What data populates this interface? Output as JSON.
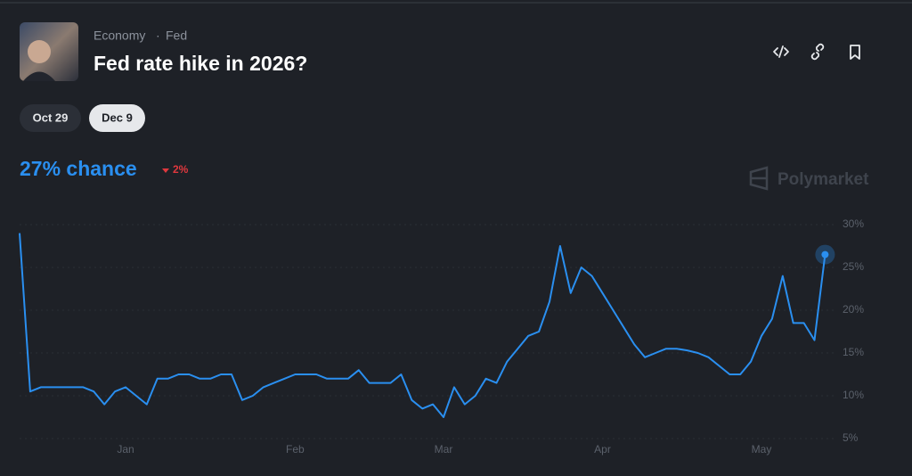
{
  "header": {
    "categories": [
      "Economy",
      "Fed"
    ],
    "title": "Fed rate hike in 2026?"
  },
  "tabs": [
    "Oct 29",
    "Dec 9"
  ],
  "chance": {
    "text": "27% chance",
    "change": "2%"
  },
  "watermark": "Polymarket",
  "chart_data": {
    "type": "line",
    "color": "#2a8ff0",
    "grid": true,
    "categories": [
      null,
      null,
      null,
      null,
      null,
      null,
      null,
      null,
      null,
      null,
      "Jan",
      null,
      null,
      null,
      null,
      null,
      null,
      null,
      null,
      null,
      null,
      null,
      null,
      null,
      null,
      null,
      "Feb",
      null,
      null,
      null,
      null,
      null,
      null,
      null,
      null,
      null,
      null,
      null,
      null,
      null,
      "Mar",
      null,
      null,
      null,
      null,
      null,
      null,
      null,
      null,
      null,
      null,
      null,
      null,
      null,
      null,
      "Apr",
      null,
      null,
      null,
      null,
      null,
      null,
      null,
      null,
      null,
      null,
      null,
      null,
      null,
      null,
      "May",
      null,
      null,
      null,
      null,
      null,
      null
    ],
    "values": [
      29,
      10.5,
      11,
      11,
      11,
      11,
      11,
      10.5,
      9,
      10.5,
      11,
      10,
      9,
      12,
      12,
      12.5,
      12.5,
      12,
      12,
      12.5,
      12.5,
      9.5,
      10,
      11,
      11.5,
      12,
      12.5,
      12.5,
      12.5,
      12,
      12,
      12,
      13,
      11.5,
      11.5,
      11.5,
      12.5,
      9.5,
      8.5,
      9,
      7.5,
      11,
      9,
      10,
      12,
      11.5,
      14,
      15.5,
      17,
      17.5,
      21,
      27.5,
      22,
      25,
      24,
      22,
      20,
      18,
      16,
      14.5,
      15,
      15.5,
      15.5,
      15.3,
      15,
      14.5,
      13.5,
      12.5,
      12.5,
      14,
      17,
      19,
      24,
      18.5,
      18.5,
      16.5,
      26.5
    ],
    "ylim": [
      5,
      30
    ],
    "yticks": [
      {
        "value": 5,
        "label": "5%"
      },
      {
        "value": 10,
        "label": "10%"
      },
      {
        "value": 15,
        "label": "15%"
      },
      {
        "value": 20,
        "label": "20%"
      },
      {
        "value": 25,
        "label": "25%"
      },
      {
        "value": 30,
        "label": "30%"
      }
    ]
  }
}
